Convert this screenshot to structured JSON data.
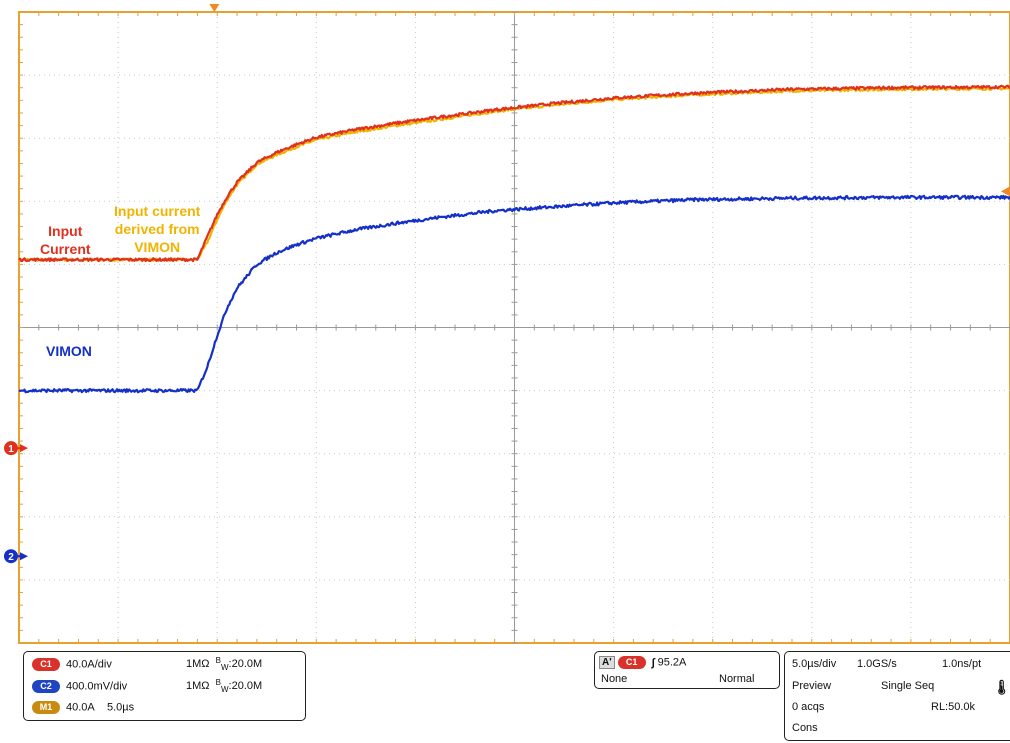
{
  "colors": {
    "input_current": "#e0301e",
    "vimon_derived": "#f0b400",
    "vimon": "#1530c8",
    "grid": "#c9c9c9",
    "frame": "#e8a030",
    "trigger": "#f08a20",
    "c1_badge": "#d8322a",
    "c2_badge": "#1f45c0",
    "m1_badge": "#c88a10"
  },
  "labels": {
    "input_current": [
      "Input",
      "Current"
    ],
    "derived": [
      "Input current",
      "derived from",
      "VIMON"
    ],
    "vimon": "VIMON"
  },
  "markers": {
    "ch1_ref": "1",
    "ch2_ref": "2",
    "trigger_level": "trigger-level-arrow",
    "trigger_position": "trigger-position-arrow"
  },
  "chart_data": {
    "type": "line",
    "xlabel": "",
    "ylabel": "",
    "grid": true,
    "divisions": {
      "horizontal": 10,
      "vertical": 10
    },
    "xlim": [
      -9.0,
      41.0
    ],
    "ylim": [
      -3.1,
      4.9
    ],
    "x_unit": "µs",
    "y_unit": "divisions",
    "x": [
      -9.0,
      0.0,
      0.5,
      1.0,
      1.5,
      2.0,
      3.0,
      4.0,
      5.0,
      6.0,
      8.0,
      10.0,
      12.0,
      15.0,
      18.0,
      21.0,
      25.0,
      30.0,
      35.0,
      41.0
    ],
    "series": [
      {
        "name": "Input Current",
        "values": [
          1.76,
          1.76,
          2.05,
          2.33,
          2.56,
          2.74,
          2.99,
          3.12,
          3.22,
          3.31,
          3.41,
          3.49,
          3.56,
          3.66,
          3.74,
          3.81,
          3.87,
          3.92,
          3.94,
          3.95
        ]
      },
      {
        "name": "Input current derived from VIMON",
        "values": [
          1.76,
          1.76,
          1.98,
          2.27,
          2.52,
          2.71,
          2.97,
          3.09,
          3.19,
          3.28,
          3.38,
          3.46,
          3.53,
          3.64,
          3.72,
          3.79,
          3.85,
          3.9,
          3.92,
          3.93
        ]
      },
      {
        "name": "VIMON",
        "values": [
          0.1,
          0.1,
          0.4,
          0.8,
          1.15,
          1.4,
          1.7,
          1.85,
          1.95,
          2.03,
          2.14,
          2.22,
          2.29,
          2.38,
          2.43,
          2.48,
          2.52,
          2.54,
          2.55,
          2.55
        ]
      }
    ]
  },
  "status": {
    "ch1": {
      "badge": "C1",
      "scale": "40.0A/div",
      "impedance": "1MΩ",
      "bw_prefix": "B",
      "bw_sub": "W",
      "bw_value": ":20.0M"
    },
    "ch2": {
      "badge": "C2",
      "scale": "400.0mV/div",
      "impedance": "1MΩ",
      "bw_prefix": "B",
      "bw_sub": "W",
      "bw_value": ":20.0M"
    },
    "m1": {
      "badge": "M1",
      "scale": "40.0A",
      "time": "5.0µs"
    },
    "trigger": {
      "mode_badge": "A'",
      "source_badge": "C1",
      "slope": "∫",
      "level": "95.2A",
      "coupling": "None",
      "mode": "Normal"
    },
    "timebase": {
      "time_div": "5.0µs/div",
      "sample_rate": "1.0GS/s",
      "resolution": "1.0ns/pt",
      "state": "Preview",
      "seq": "Single Seq",
      "acqs": "0 acqs",
      "record_length": "RL:50.0k",
      "cons": "Cons"
    }
  }
}
